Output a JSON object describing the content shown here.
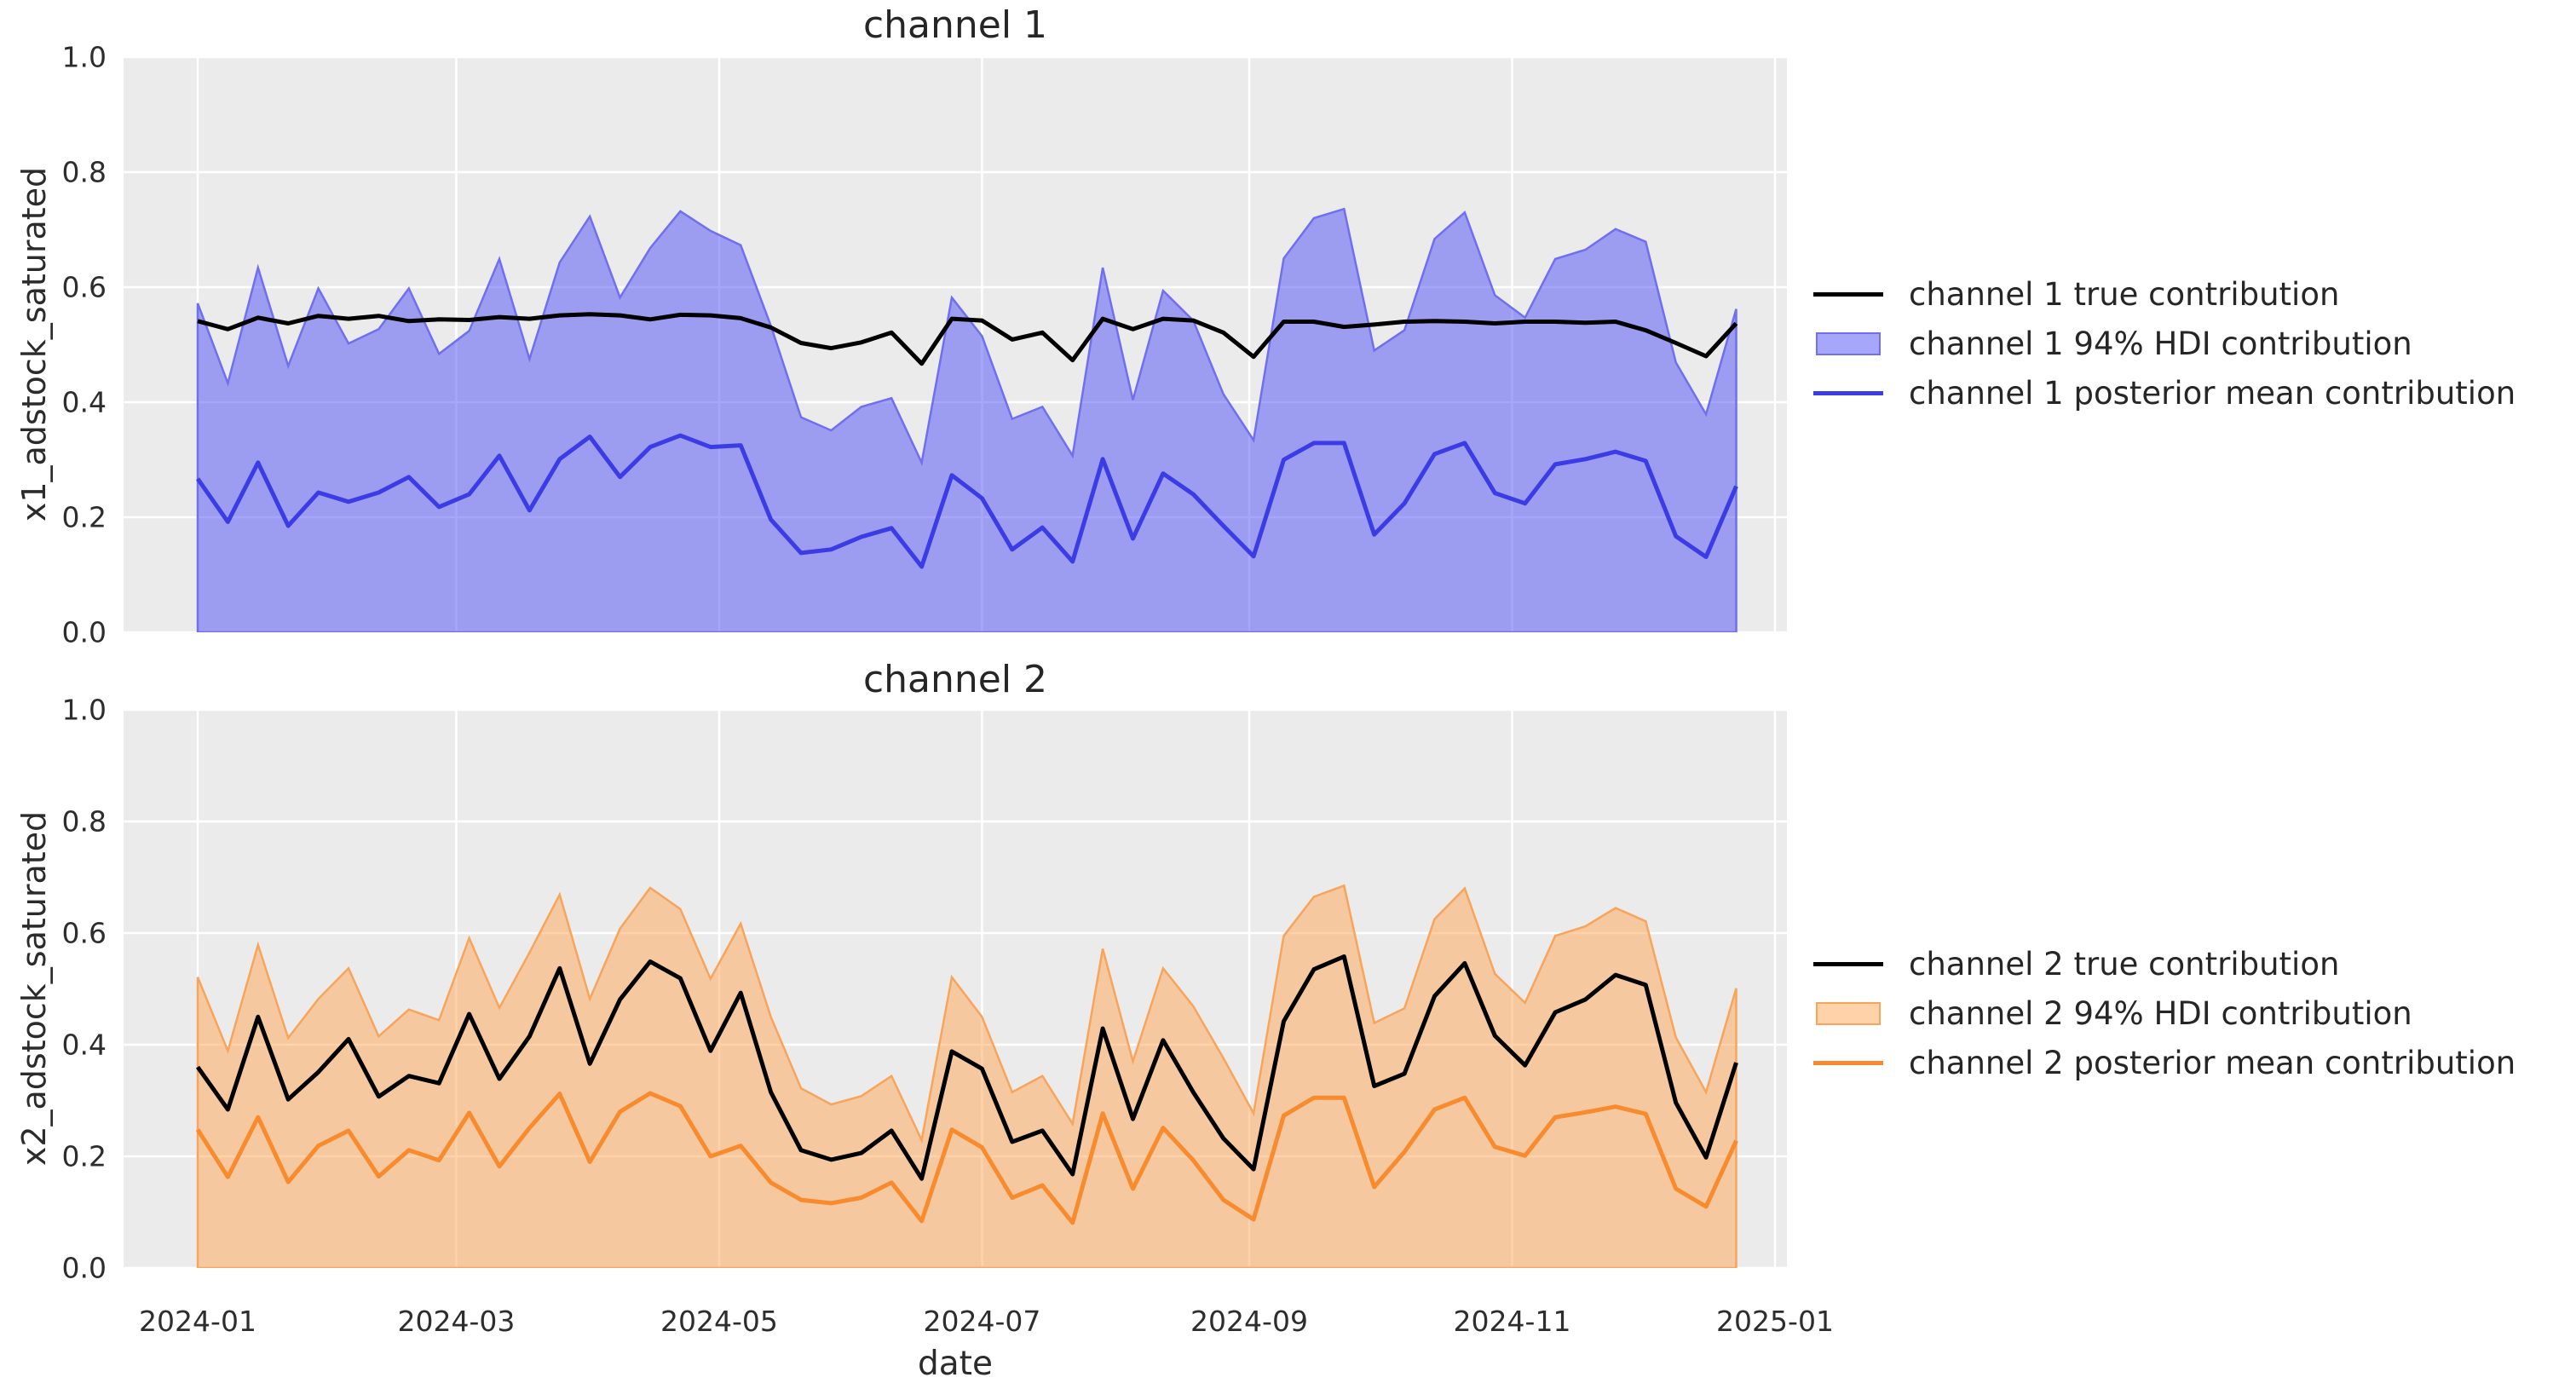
{
  "figure": {
    "plot_background": "#ebebeb",
    "grid_color": "#ffffff",
    "text_color": "#262626"
  },
  "chart_data": [
    {
      "type": "line",
      "title": "channel 1",
      "ylabel": "x1_adstock_saturated",
      "xlabel": "date",
      "ylim": [
        0.0,
        1.0
      ],
      "yticks": [
        0.0,
        0.2,
        0.4,
        0.6,
        0.8,
        1.0
      ],
      "ytick_labels": [
        "0.0",
        "0.2",
        "0.4",
        "0.6",
        "0.8",
        "1.0"
      ],
      "xtick_labels": [
        "2024-01",
        "2024-03",
        "2024-05",
        "2024-07",
        "2024-09",
        "2024-11",
        "2025-01"
      ],
      "grid": true,
      "legend_position": "right",
      "x": [
        "2024-01-01",
        "2024-01-08",
        "2024-01-15",
        "2024-01-22",
        "2024-01-29",
        "2024-02-05",
        "2024-02-12",
        "2024-02-19",
        "2024-02-26",
        "2024-03-04",
        "2024-03-11",
        "2024-03-18",
        "2024-03-25",
        "2024-04-01",
        "2024-04-08",
        "2024-04-15",
        "2024-04-22",
        "2024-04-29",
        "2024-05-06",
        "2024-05-13",
        "2024-05-20",
        "2024-05-27",
        "2024-06-03",
        "2024-06-10",
        "2024-06-17",
        "2024-06-24",
        "2024-07-01",
        "2024-07-08",
        "2024-07-15",
        "2024-07-22",
        "2024-07-29",
        "2024-08-05",
        "2024-08-12",
        "2024-08-19",
        "2024-08-26",
        "2024-09-02",
        "2024-09-09",
        "2024-09-16",
        "2024-09-23",
        "2024-09-30",
        "2024-10-07",
        "2024-10-14",
        "2024-10-21",
        "2024-10-28",
        "2024-11-04",
        "2024-11-11",
        "2024-11-18",
        "2024-11-25",
        "2024-12-02",
        "2024-12-09",
        "2024-12-16",
        "2024-12-23"
      ],
      "series": [
        {
          "name": "channel 1 true contribution",
          "kind": "line",
          "color": "#000000",
          "width": 5,
          "values": [
            0.541,
            0.527,
            0.547,
            0.537,
            0.55,
            0.545,
            0.55,
            0.541,
            0.544,
            0.543,
            0.548,
            0.545,
            0.551,
            0.553,
            0.551,
            0.544,
            0.552,
            0.551,
            0.546,
            0.53,
            0.503,
            0.494,
            0.504,
            0.521,
            0.467,
            0.545,
            0.542,
            0.509,
            0.521,
            0.473,
            0.545,
            0.527,
            0.545,
            0.542,
            0.521,
            0.479,
            0.54,
            0.54,
            0.531,
            0.535,
            0.54,
            0.541,
            0.54,
            0.537,
            0.54,
            0.54,
            0.538,
            0.54,
            0.525,
            0.503,
            0.48,
            0.537
          ]
        },
        {
          "name": "channel 1 94% HDI contribution",
          "kind": "band",
          "fill": "rgba(77,77,245,0.5)",
          "edge": "#6f6ff0",
          "edge_width": 2.5,
          "lower": [
            0,
            0,
            0,
            0,
            0,
            0,
            0,
            0,
            0,
            0,
            0,
            0,
            0,
            0,
            0,
            0,
            0,
            0,
            0,
            0,
            0,
            0,
            0,
            0,
            0,
            0,
            0,
            0,
            0,
            0,
            0,
            0,
            0,
            0,
            0,
            0,
            0,
            0,
            0,
            0,
            0,
            0,
            0,
            0,
            0,
            0,
            0,
            0,
            0,
            0,
            0,
            0
          ],
          "upper": [
            0.572,
            0.433,
            0.634,
            0.463,
            0.598,
            0.502,
            0.527,
            0.598,
            0.484,
            0.524,
            0.649,
            0.475,
            0.643,
            0.723,
            0.582,
            0.668,
            0.732,
            0.698,
            0.673,
            0.533,
            0.374,
            0.351,
            0.392,
            0.407,
            0.295,
            0.582,
            0.515,
            0.371,
            0.392,
            0.307,
            0.634,
            0.404,
            0.594,
            0.542,
            0.414,
            0.334,
            0.65,
            0.72,
            0.736,
            0.49,
            0.525,
            0.684,
            0.73,
            0.586,
            0.547,
            0.649,
            0.665,
            0.701,
            0.679,
            0.469,
            0.379,
            0.562
          ]
        },
        {
          "name": "channel 1 posterior mean contribution",
          "kind": "line",
          "color": "#3c3ce6",
          "width": 5,
          "values": [
            0.267,
            0.192,
            0.295,
            0.185,
            0.243,
            0.227,
            0.243,
            0.27,
            0.218,
            0.24,
            0.307,
            0.212,
            0.301,
            0.34,
            0.27,
            0.322,
            0.342,
            0.322,
            0.325,
            0.196,
            0.138,
            0.144,
            0.166,
            0.181,
            0.114,
            0.273,
            0.233,
            0.144,
            0.182,
            0.123,
            0.301,
            0.163,
            0.276,
            0.24,
            0.185,
            0.132,
            0.3,
            0.329,
            0.329,
            0.17,
            0.224,
            0.31,
            0.329,
            0.242,
            0.224,
            0.292,
            0.301,
            0.314,
            0.298,
            0.167,
            0.131,
            0.254
          ]
        }
      ]
    },
    {
      "type": "line",
      "title": "channel 2",
      "ylabel": "x2_adstock_saturated",
      "xlabel": "date",
      "ylim": [
        0.0,
        1.0
      ],
      "yticks": [
        0.0,
        0.2,
        0.4,
        0.6,
        0.8,
        1.0
      ],
      "ytick_labels": [
        "0.0",
        "0.2",
        "0.4",
        "0.6",
        "0.8",
        "1.0"
      ],
      "xtick_labels": [
        "2024-01",
        "2024-03",
        "2024-05",
        "2024-07",
        "2024-09",
        "2024-11",
        "2025-01"
      ],
      "grid": true,
      "legend_position": "right",
      "x": [
        "2024-01-01",
        "2024-01-08",
        "2024-01-15",
        "2024-01-22",
        "2024-01-29",
        "2024-02-05",
        "2024-02-12",
        "2024-02-19",
        "2024-02-26",
        "2024-03-04",
        "2024-03-11",
        "2024-03-18",
        "2024-03-25",
        "2024-04-01",
        "2024-04-08",
        "2024-04-15",
        "2024-04-22",
        "2024-04-29",
        "2024-05-06",
        "2024-05-13",
        "2024-05-20",
        "2024-05-27",
        "2024-06-03",
        "2024-06-10",
        "2024-06-17",
        "2024-06-24",
        "2024-07-01",
        "2024-07-08",
        "2024-07-15",
        "2024-07-22",
        "2024-07-29",
        "2024-08-05",
        "2024-08-12",
        "2024-08-19",
        "2024-08-26",
        "2024-09-02",
        "2024-09-09",
        "2024-09-16",
        "2024-09-23",
        "2024-09-30",
        "2024-10-07",
        "2024-10-14",
        "2024-10-21",
        "2024-10-28",
        "2024-11-04",
        "2024-11-11",
        "2024-11-18",
        "2024-11-25",
        "2024-12-02",
        "2024-12-09",
        "2024-12-16",
        "2024-12-23"
      ],
      "series": [
        {
          "name": "channel 2 true contribution",
          "kind": "line",
          "color": "#000000",
          "width": 5,
          "values": [
            0.36,
            0.284,
            0.45,
            0.302,
            0.351,
            0.41,
            0.307,
            0.344,
            0.331,
            0.455,
            0.339,
            0.415,
            0.537,
            0.366,
            0.481,
            0.549,
            0.519,
            0.389,
            0.493,
            0.315,
            0.211,
            0.194,
            0.206,
            0.246,
            0.16,
            0.388,
            0.357,
            0.226,
            0.246,
            0.168,
            0.429,
            0.267,
            0.408,
            0.315,
            0.232,
            0.177,
            0.442,
            0.535,
            0.558,
            0.326,
            0.348,
            0.487,
            0.546,
            0.416,
            0.363,
            0.458,
            0.481,
            0.525,
            0.507,
            0.296,
            0.198,
            0.368
          ]
        },
        {
          "name": "channel 2 94% HDI contribution",
          "kind": "band",
          "fill": "rgba(255,165,85,0.5)",
          "edge": "#f8a45a",
          "edge_width": 2.5,
          "lower": [
            0,
            0,
            0,
            0,
            0,
            0,
            0,
            0,
            0,
            0,
            0,
            0,
            0,
            0,
            0,
            0,
            0,
            0,
            0,
            0,
            0,
            0,
            0,
            0,
            0,
            0,
            0,
            0,
            0,
            0,
            0,
            0,
            0,
            0,
            0,
            0,
            0,
            0,
            0,
            0,
            0,
            0,
            0,
            0,
            0,
            0,
            0,
            0,
            0,
            0,
            0,
            0
          ],
          "upper": [
            0.521,
            0.389,
            0.579,
            0.412,
            0.482,
            0.537,
            0.415,
            0.463,
            0.444,
            0.591,
            0.466,
            0.565,
            0.669,
            0.482,
            0.608,
            0.681,
            0.643,
            0.518,
            0.617,
            0.45,
            0.322,
            0.293,
            0.308,
            0.344,
            0.229,
            0.521,
            0.45,
            0.315,
            0.344,
            0.258,
            0.572,
            0.37,
            0.537,
            0.469,
            0.376,
            0.277,
            0.595,
            0.665,
            0.685,
            0.439,
            0.465,
            0.625,
            0.68,
            0.527,
            0.475,
            0.595,
            0.612,
            0.645,
            0.621,
            0.413,
            0.315,
            0.501
          ]
        },
        {
          "name": "channel 2 posterior mean contribution",
          "kind": "line",
          "color": "#f78b2e",
          "width": 5,
          "values": [
            0.248,
            0.163,
            0.27,
            0.154,
            0.219,
            0.246,
            0.164,
            0.211,
            0.193,
            0.278,
            0.182,
            0.251,
            0.312,
            0.19,
            0.28,
            0.313,
            0.29,
            0.2,
            0.219,
            0.153,
            0.122,
            0.116,
            0.126,
            0.153,
            0.084,
            0.248,
            0.216,
            0.126,
            0.148,
            0.081,
            0.277,
            0.142,
            0.251,
            0.193,
            0.122,
            0.087,
            0.273,
            0.305,
            0.305,
            0.145,
            0.208,
            0.284,
            0.305,
            0.217,
            0.201,
            0.27,
            0.279,
            0.289,
            0.276,
            0.142,
            0.11,
            0.228
          ]
        }
      ]
    }
  ]
}
